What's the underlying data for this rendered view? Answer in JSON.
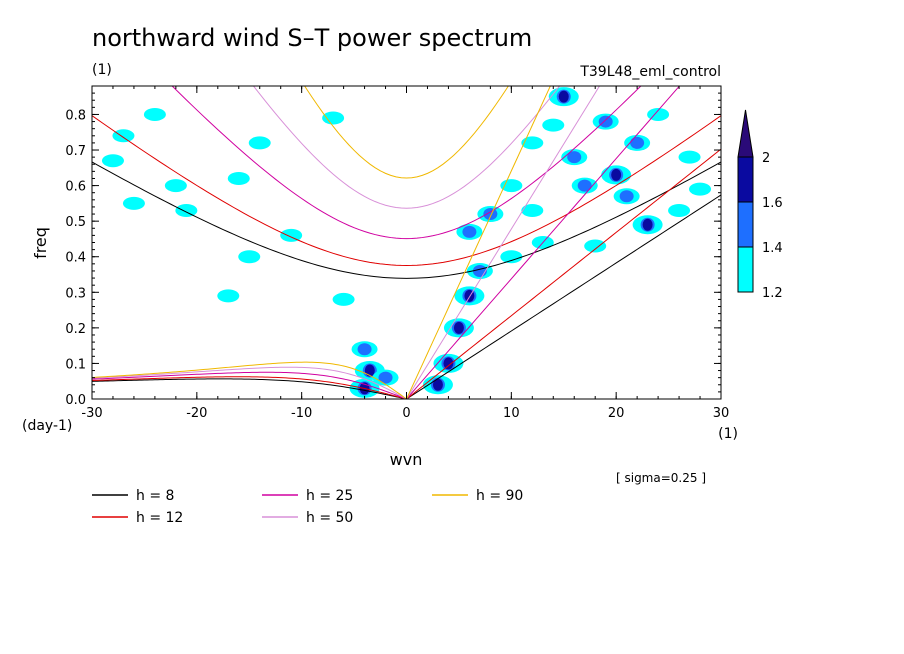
{
  "chart_data": {
    "type": "contour",
    "title": "northward wind S–T power spectrum",
    "subtitle_left": "(1)",
    "subtitle_right": "T39L48_eml_control",
    "xlabel": "wvn",
    "ylabel": "freq",
    "x_unit": "(1)",
    "y_unit": "(day-1)",
    "xlim": [
      -30,
      30
    ],
    "ylim": [
      0,
      0.88
    ],
    "x_ticks": [
      -30,
      -20,
      -10,
      0,
      10,
      20,
      30
    ],
    "x_tick_labels": [
      "-30",
      "-20",
      "-10",
      "0",
      "10",
      "20",
      "30"
    ],
    "y_ticks": [
      0,
      0.1,
      0.2,
      0.3,
      0.4,
      0.5,
      0.6,
      0.7,
      0.8
    ],
    "y_tick_labels": [
      "0.0",
      "0.1",
      "0.2",
      "0.3",
      "0.4",
      "0.5",
      "0.6",
      "0.7",
      "0.8"
    ],
    "colorbar": {
      "levels": [
        1.2,
        1.4,
        1.6,
        2
      ],
      "labels": [
        "1.2",
        "1.4",
        "1.6",
        "2"
      ],
      "colors": [
        "#00ffff",
        "#1e6fff",
        "#0a0aa0",
        "#2a0a78"
      ]
    },
    "note": "[ sigma=0.25 ]",
    "legend": [
      {
        "label": "h =  8",
        "color": "#000000"
      },
      {
        "label": "h = 12",
        "color": "#e00000"
      },
      {
        "label": "h = 25",
        "color": "#d000a0"
      },
      {
        "label": "h = 50",
        "color": "#d890d8"
      },
      {
        "label": "h = 90",
        "color": "#f0b800"
      }
    ],
    "dispersion_h": [
      8,
      12,
      25,
      50,
      90
    ],
    "contour_blobs": [
      {
        "x": -28,
        "y": 0.67,
        "level": 1
      },
      {
        "x": -27,
        "y": 0.74,
        "level": 1
      },
      {
        "x": -26,
        "y": 0.55,
        "level": 1
      },
      {
        "x": -24,
        "y": 0.8,
        "level": 1
      },
      {
        "x": -22,
        "y": 0.6,
        "level": 1
      },
      {
        "x": -21,
        "y": 0.53,
        "level": 1
      },
      {
        "x": -17,
        "y": 0.29,
        "level": 1
      },
      {
        "x": -16,
        "y": 0.62,
        "level": 1
      },
      {
        "x": -15,
        "y": 0.4,
        "level": 1
      },
      {
        "x": -14,
        "y": 0.72,
        "level": 1
      },
      {
        "x": -11,
        "y": 0.46,
        "level": 1
      },
      {
        "x": -7,
        "y": 0.79,
        "level": 1
      },
      {
        "x": -6,
        "y": 0.28,
        "level": 1
      },
      {
        "x": -4,
        "y": 0.14,
        "level": 2
      },
      {
        "x": -3.5,
        "y": 0.08,
        "level": 3
      },
      {
        "x": -4,
        "y": 0.03,
        "level": 3
      },
      {
        "x": -2,
        "y": 0.06,
        "level": 2
      },
      {
        "x": 3,
        "y": 0.04,
        "level": 3
      },
      {
        "x": 4,
        "y": 0.1,
        "level": 3
      },
      {
        "x": 5,
        "y": 0.2,
        "level": 3
      },
      {
        "x": 6,
        "y": 0.29,
        "level": 3
      },
      {
        "x": 7,
        "y": 0.36,
        "level": 2
      },
      {
        "x": 6,
        "y": 0.47,
        "level": 2
      },
      {
        "x": 8,
        "y": 0.52,
        "level": 2
      },
      {
        "x": 10,
        "y": 0.4,
        "level": 1
      },
      {
        "x": 12,
        "y": 0.53,
        "level": 1
      },
      {
        "x": 13,
        "y": 0.44,
        "level": 1
      },
      {
        "x": 15,
        "y": 0.85,
        "level": 3
      },
      {
        "x": 14,
        "y": 0.77,
        "level": 1
      },
      {
        "x": 16,
        "y": 0.68,
        "level": 2
      },
      {
        "x": 17,
        "y": 0.6,
        "level": 2
      },
      {
        "x": 18,
        "y": 0.43,
        "level": 1
      },
      {
        "x": 19,
        "y": 0.78,
        "level": 2
      },
      {
        "x": 20,
        "y": 0.63,
        "level": 3
      },
      {
        "x": 21,
        "y": 0.57,
        "level": 2
      },
      {
        "x": 22,
        "y": 0.72,
        "level": 2
      },
      {
        "x": 23,
        "y": 0.49,
        "level": 3
      },
      {
        "x": 24,
        "y": 0.8,
        "level": 1
      },
      {
        "x": 26,
        "y": 0.53,
        "level": 1
      },
      {
        "x": 27,
        "y": 0.68,
        "level": 1
      },
      {
        "x": 28,
        "y": 0.59,
        "level": 1
      },
      {
        "x": 10,
        "y": 0.6,
        "level": 1
      },
      {
        "x": 12,
        "y": 0.72,
        "level": 1
      }
    ]
  }
}
